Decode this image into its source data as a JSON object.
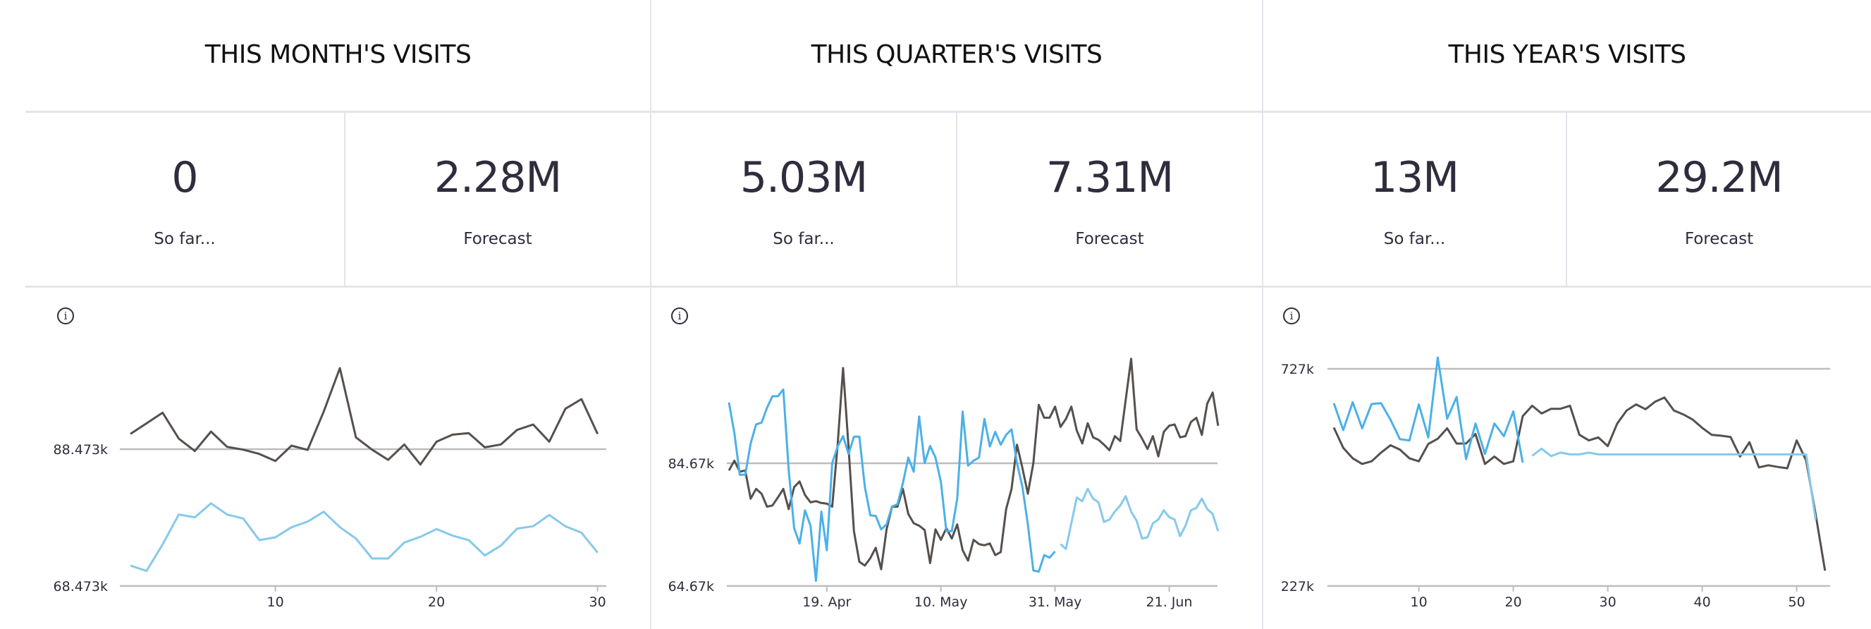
{
  "panels": [
    {
      "title": "THIS MONTH'S VISITS",
      "so_far": {
        "value": "0",
        "label": "So far..."
      },
      "forecast": {
        "value": "2.28M",
        "label": "Forecast"
      },
      "info_icon": "info-icon"
    },
    {
      "title": "THIS QUARTER'S VISITS",
      "so_far": {
        "value": "5.03M",
        "label": "So far..."
      },
      "forecast": {
        "value": "7.31M",
        "label": "Forecast"
      },
      "info_icon": "info-icon"
    },
    {
      "title": "THIS YEAR'S VISITS",
      "so_far": {
        "value": "13M",
        "label": "So far..."
      },
      "forecast": {
        "value": "29.2M",
        "label": "Forecast"
      },
      "info_icon": "info-icon"
    }
  ],
  "chart_data": [
    {
      "type": "line",
      "x_start": 1,
      "y_ticks": [
        {
          "value": 68.473,
          "label": "68.473k"
        },
        {
          "value": 88.473,
          "label": "88.473k"
        }
      ],
      "x_ticks": [
        {
          "x": 10,
          "label": "10"
        },
        {
          "x": 20,
          "label": "20"
        },
        {
          "x": 30,
          "label": "30"
        }
      ],
      "ylim": [
        68.473,
        108.473
      ],
      "series": [
        {
          "color": "#55504d",
          "start": 1,
          "values": [
            90.7,
            92.25,
            93.8,
            90.02,
            88.2,
            91.05,
            88.81,
            88.4,
            87.78,
            86.75,
            88.99,
            88.37,
            93.97,
            100.33,
            90.19,
            88.4,
            86.92,
            89.16,
            86.24,
            89.57,
            90.6,
            90.81,
            88.74,
            89.16,
            91.29,
            92.08,
            89.57,
            94.38,
            95.79,
            90.7
          ]
        },
        {
          "color": "#86c9ec",
          "start": 1,
          "values": [
            71.46,
            70.67,
            74.56,
            78.92,
            78.51,
            80.57,
            78.92,
            78.34,
            75.17,
            75.59,
            77.06,
            77.89,
            79.33,
            77.06,
            75.41,
            72.49,
            72.49,
            74.83,
            75.66,
            76.79,
            75.83,
            75.17,
            72.94,
            74.38,
            76.86,
            77.2,
            78.85,
            77.2,
            76.27,
            73.35
          ]
        }
      ]
    },
    {
      "type": "line",
      "y_ticks": [
        {
          "value": 64.67,
          "label": "64.67k"
        },
        {
          "value": 84.67,
          "label": "84.67k"
        }
      ],
      "x_ticks": [
        {
          "x": 18,
          "label": "19. Apr"
        },
        {
          "x": 39,
          "label": "10. May"
        },
        {
          "x": 60,
          "label": "31. May"
        },
        {
          "x": 81,
          "label": "21. Jun"
        }
      ],
      "ylim": [
        64.67,
        104.67
      ],
      "series": [
        {
          "color": "#55504d",
          "start": 0,
          "values": [
            83.5,
            85.1,
            83.3,
            83.5,
            78.9,
            80.5,
            79.7,
            77.6,
            77.8,
            79.1,
            80.5,
            77.2,
            80.8,
            81.7,
            79.5,
            78.3,
            78.5,
            78.2,
            78.1,
            77.6,
            87.7,
            100.2,
            87.4,
            73.6,
            68.6,
            68.0,
            69.2,
            70.9,
            67.4,
            73.9,
            77.6,
            77.6,
            80.5,
            76.4,
            74.9,
            74.5,
            73.8,
            68.4,
            73.9,
            72.2,
            74.1,
            72.4,
            74.7,
            70.5,
            68.8,
            72.2,
            71.5,
            71.3,
            71.6,
            69.7,
            70.2,
            77.2,
            80.5,
            87.7,
            83.9,
            79.7,
            84.7,
            94.2,
            92.1,
            92.1,
            93.9,
            90.6,
            91.9,
            93.9,
            90.0,
            87.9,
            91.2,
            88.9,
            88.5,
            87.7,
            86.8,
            89.1,
            88.3,
            95.0,
            101.7,
            90.2,
            88.7,
            87.0,
            89.1,
            85.8,
            89.8,
            90.8,
            91.0,
            88.9,
            89.1,
            91.4,
            92.1,
            89.3,
            94.4,
            96.2,
            90.8
          ]
        },
        {
          "color": "#4bb0e8",
          "start": 0,
          "values": [
            94.6,
            89.6,
            82.8,
            82.8,
            87.9,
            91.0,
            91.3,
            93.7,
            95.6,
            95.6,
            96.7,
            83.5,
            74.1,
            71.6,
            77.0,
            74.5,
            65.5,
            76.8,
            70.5,
            84.7,
            87.4,
            89.1,
            86.2,
            89.0,
            89.0,
            80.8,
            76.2,
            76.1,
            73.9,
            74.7,
            77.6,
            78.0,
            81.4,
            85.6,
            83.3,
            92.3,
            84.7,
            87.5,
            85.6,
            81.6,
            73.6,
            73.6,
            78.9,
            93.1,
            84.3,
            85.1,
            85.6,
            91.9,
            87.4,
            89.8,
            87.7,
            89.3,
            90.2,
            84.7,
            80.8,
            74.7,
            67.2,
            67.0,
            69.7,
            69.3,
            70.3
          ]
        },
        {
          "color": "#86c9ec",
          "start": 61,
          "values": [
            71.5,
            70.7,
            74.9,
            79.1,
            78.5,
            80.5,
            78.9,
            78.3,
            75.1,
            75.5,
            76.8,
            77.8,
            79.3,
            76.8,
            75.3,
            72.4,
            72.6,
            74.9,
            75.5,
            77.0,
            75.9,
            75.5,
            72.8,
            74.5,
            77.0,
            77.4,
            78.9,
            77.2,
            76.4,
            73.6
          ]
        }
      ]
    },
    {
      "type": "line",
      "x_start": 1,
      "y_ticks": [
        {
          "value": 227,
          "label": "227k"
        },
        {
          "value": 727,
          "label": "727k"
        }
      ],
      "x_ticks": [
        {
          "x": 10,
          "label": "10"
        },
        {
          "x": 20,
          "label": "20"
        },
        {
          "x": 30,
          "label": "30"
        },
        {
          "x": 40,
          "label": "40"
        },
        {
          "x": 50,
          "label": "50"
        }
      ],
      "ylim": [
        227,
        777
      ],
      "series": [
        {
          "color": "#55504d",
          "start": 1,
          "values": [
            592,
            545,
            521,
            508,
            514,
            534,
            551,
            541,
            521,
            514,
            554,
            566,
            590,
            555,
            555,
            577,
            508,
            525,
            508,
            514,
            618,
            642,
            624,
            635,
            635,
            642,
            575,
            562,
            569,
            549,
            601,
            631,
            645,
            634,
            651,
            661,
            631,
            622,
            610,
            591,
            575,
            573,
            570,
            525,
            558,
            500,
            505,
            501,
            498,
            562,
            516,
            393,
            262
          ]
        },
        {
          "color": "#4bb0e8",
          "start": 1,
          "values": [
            648,
            586,
            650,
            590,
            646,
            648,
            610,
            565,
            562,
            645,
            569,
            753,
            612,
            662,
            519,
            601,
            531,
            601,
            572,
            629,
            511
          ]
        },
        {
          "color": "#86c9ec",
          "start": 22,
          "values": [
            527,
            543,
            526,
            534,
            530,
            530,
            534,
            530,
            530,
            530,
            530,
            530,
            530,
            530,
            530,
            530,
            530,
            530,
            530,
            530,
            530,
            530,
            530,
            530,
            530,
            530,
            530,
            530,
            530,
            530,
            380
          ]
        }
      ]
    }
  ]
}
